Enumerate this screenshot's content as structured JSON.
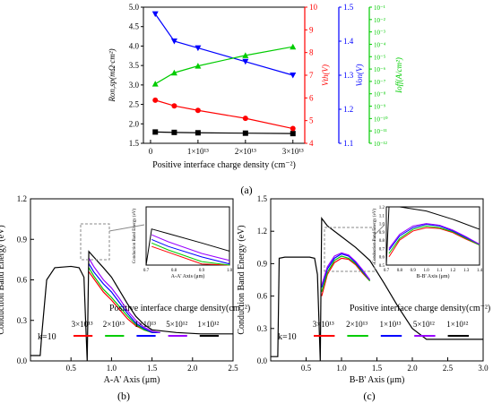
{
  "panel_labels": [
    "(a)",
    "(b)",
    "(c)"
  ],
  "chart_data": [
    {
      "type": "line",
      "panel": "(a)",
      "xlabel": "Positive interface charge density (cm⁻²)",
      "x": [
        1000000000000.0,
        5000000000000.0,
        10000000000000.0,
        20000000000000.0,
        30000000000000.0
      ],
      "xticks": [
        {
          "v": 0,
          "label": "0"
        },
        {
          "v": 10000000000000.0,
          "label": "1×10¹³"
        },
        {
          "v": 20000000000000.0,
          "label": "2×10¹³"
        },
        {
          "v": 30000000000000.0,
          "label": "3×10¹³"
        }
      ],
      "xlim": [
        -1500000000000.0,
        32500000000000.0
      ],
      "axes": [
        {
          "id": "ron",
          "label": "Ron,sp(mΩ·cm²)",
          "color": "#000000",
          "ylim": [
            1.5,
            5.0
          ],
          "ticks": [
            "1.5",
            "2.0",
            "2.5",
            "3.0",
            "3.5",
            "4.0",
            "4.5",
            "5.0"
          ]
        },
        {
          "id": "vth",
          "label": "Vth(V)",
          "color": "#ff0000",
          "ylim": [
            4,
            10
          ],
          "ticks": [
            "4",
            "5",
            "6",
            "7",
            "8",
            "9",
            "10"
          ]
        },
        {
          "id": "von",
          "label": "Von(V)",
          "color": "#0000ff",
          "ylim": [
            1.1,
            1.5
          ],
          "ticks": [
            "1.1",
            "1.2",
            "1.3",
            "1.4",
            "1.5"
          ]
        },
        {
          "id": "ioff",
          "label": "Ioff(A/cm²)",
          "color": "#00cc00",
          "log": true,
          "ylim": [
            -12,
            -1
          ],
          "ticks": [
            "10⁻¹²",
            "10⁻¹¹",
            "10⁻¹⁰",
            "10⁻⁹",
            "10⁻⁸",
            "10⁻⁷",
            "10⁻⁶",
            "10⁻⁵",
            "10⁻⁴",
            "10⁻³",
            "10⁻²",
            "10⁻¹"
          ]
        }
      ],
      "series": [
        {
          "axis": "ron",
          "marker": "square",
          "color": "#000000",
          "values": [
            1.79,
            1.78,
            1.77,
            1.76,
            1.75
          ]
        },
        {
          "axis": "vth",
          "marker": "circle",
          "color": "#ff0000",
          "values": [
            5.9,
            5.65,
            5.45,
            5.1,
            4.65
          ]
        },
        {
          "axis": "von",
          "marker": "triangle-down",
          "color": "#0000ff",
          "values": [
            1.48,
            1.4,
            1.38,
            1.34,
            1.3
          ]
        },
        {
          "axis": "ioff",
          "marker": "triangle-up",
          "color": "#00cc00",
          "values": [
            -7.2,
            -6.3,
            -5.75,
            -4.9,
            -4.2
          ]
        }
      ]
    },
    {
      "type": "line",
      "panel": "(b)",
      "xlabel": "A-A' Axis (μm)",
      "ylabel": "Conduction Band Energy (eV)",
      "xlim": [
        0,
        2.5
      ],
      "ylim": [
        0,
        1.2
      ],
      "xticks": [
        "0.5",
        "1.0",
        "1.5",
        "2.0",
        "2.5"
      ],
      "yticks": [
        "0.0",
        "0.3",
        "0.6",
        "0.9",
        "1.2"
      ],
      "legend_title": "Positive interface charge density(cm⁻²)",
      "legend_k": "k=10",
      "series": [
        {
          "name": "3×10¹³",
          "color": "#ff0000",
          "x": [
            0.72,
            0.78,
            0.9,
            1.0,
            1.1,
            1.2,
            1.3,
            1.4,
            1.5,
            1.6
          ],
          "y": [
            0.66,
            0.61,
            0.51,
            0.45,
            0.38,
            0.31,
            0.26,
            0.23,
            0.21,
            0.21
          ]
        },
        {
          "name": "2×10¹³",
          "color": "#00cc00",
          "x": [
            0.72,
            0.78,
            0.9,
            1.0,
            1.1,
            1.2,
            1.3,
            1.4,
            1.5,
            1.6
          ],
          "y": [
            0.69,
            0.63,
            0.53,
            0.47,
            0.4,
            0.33,
            0.27,
            0.23,
            0.21,
            0.21
          ]
        },
        {
          "name": "1×10¹³",
          "color": "#0000ff",
          "x": [
            0.72,
            0.78,
            0.9,
            1.0,
            1.1,
            1.2,
            1.3,
            1.4,
            1.5,
            1.6
          ],
          "y": [
            0.72,
            0.66,
            0.57,
            0.51,
            0.43,
            0.35,
            0.28,
            0.24,
            0.21,
            0.21
          ]
        },
        {
          "name": "5×10¹²",
          "color": "#9900ff",
          "x": [
            0.72,
            0.78,
            0.9,
            1.0,
            1.1,
            1.2,
            1.3,
            1.4,
            1.5,
            1.6
          ],
          "y": [
            0.76,
            0.7,
            0.6,
            0.54,
            0.46,
            0.37,
            0.3,
            0.25,
            0.22,
            0.21
          ]
        },
        {
          "name": "1×10¹²",
          "color": "#000000",
          "x": [
            0.0,
            0.12,
            0.14,
            0.2,
            0.3,
            0.5,
            0.6,
            0.66,
            0.68,
            0.7,
            0.72,
            0.78,
            0.9,
            1.0,
            1.1,
            1.2,
            1.3,
            1.4,
            1.5,
            1.8,
            2.1,
            2.5
          ],
          "y": [
            0.04,
            0.04,
            0.2,
            0.6,
            0.69,
            0.7,
            0.69,
            0.62,
            0.3,
            0.0,
            0.81,
            0.77,
            0.69,
            0.62,
            0.52,
            0.42,
            0.33,
            0.27,
            0.23,
            0.21,
            0.2,
            0.2
          ]
        }
      ],
      "inset": {
        "xlabel": "A-A' Axis (μm)",
        "ylabel": "Conduction Band Energy (eV)",
        "xticks": [
          "0.7",
          "0.8",
          "0.9",
          "1.0"
        ]
      }
    },
    {
      "type": "line",
      "panel": "(c)",
      "xlabel": "B-B' Axis (μm)",
      "ylabel": "Conduction Band Energy (eV)",
      "xlim": [
        0,
        3.0
      ],
      "ylim": [
        0,
        1.5
      ],
      "xticks": [
        "0.5",
        "1.0",
        "1.5",
        "2.0",
        "2.5",
        "3.0"
      ],
      "yticks": [
        "0.0",
        "0.3",
        "0.6",
        "0.9",
        "1.2",
        "1.5"
      ],
      "legend_title": "Positive interface charge density(cm⁻²)",
      "legend_k": "k=10",
      "series": [
        {
          "name": "3×10¹³",
          "color": "#ff0000",
          "x": [
            0.72,
            0.8,
            0.9,
            1.0,
            1.1,
            1.2,
            1.3,
            1.4
          ],
          "y": [
            0.6,
            0.8,
            0.91,
            0.95,
            0.94,
            0.89,
            0.81,
            0.74
          ]
        },
        {
          "name": "2×10¹³",
          "color": "#00cc00",
          "x": [
            0.72,
            0.8,
            0.9,
            1.0,
            1.1,
            1.2,
            1.3,
            1.4
          ],
          "y": [
            0.64,
            0.82,
            0.93,
            0.97,
            0.95,
            0.9,
            0.82,
            0.74
          ]
        },
        {
          "name": "1×10¹³",
          "color": "#0000ff",
          "x": [
            0.72,
            0.8,
            0.9,
            1.0,
            1.1,
            1.2,
            1.3,
            1.4
          ],
          "y": [
            0.68,
            0.85,
            0.95,
            0.99,
            0.97,
            0.91,
            0.83,
            0.75
          ]
        },
        {
          "name": "5×10¹²",
          "color": "#9900ff",
          "x": [
            0.72,
            0.8,
            0.9,
            1.0,
            1.1,
            1.2,
            1.3,
            1.4
          ],
          "y": [
            0.7,
            0.87,
            0.97,
            1.0,
            0.98,
            0.92,
            0.84,
            0.75
          ]
        },
        {
          "name": "1×10¹²",
          "color": "#000000",
          "x": [
            0.0,
            0.1,
            0.12,
            0.2,
            0.55,
            0.62,
            0.66,
            0.7,
            0.72,
            0.8,
            1.0,
            1.2,
            1.4,
            1.6,
            1.8,
            2.0,
            2.2,
            2.5,
            3.0
          ],
          "y": [
            0.04,
            0.04,
            0.95,
            0.96,
            0.96,
            0.95,
            0.8,
            0.0,
            1.32,
            1.25,
            1.15,
            1.05,
            0.93,
            0.72,
            0.5,
            0.3,
            0.2,
            0.2,
            0.2
          ]
        }
      ],
      "inset": {
        "xlabel": "B-B' Axis (μm)",
        "ylabel": "Conduction Band Energy (eV)",
        "xticks": [
          "0.7",
          "0.8",
          "0.9",
          "1.0",
          "1.1",
          "1.2",
          "1.3",
          "1.4"
        ],
        "yticks": [
          "0.5",
          "0.6",
          "0.7",
          "0.8",
          "0.9",
          "1.0",
          "1.1",
          "1.2"
        ]
      }
    }
  ]
}
